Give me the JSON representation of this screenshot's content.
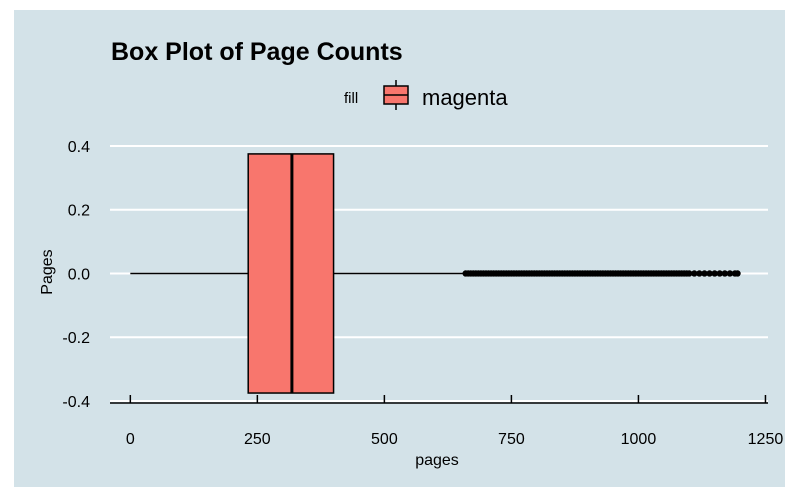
{
  "chart_data": {
    "type": "boxplot",
    "title": "Box Plot of Page Counts",
    "xlabel": "pages",
    "ylabel": "Pages",
    "xlim": [
      -40,
      1255
    ],
    "ylim": [
      -0.4,
      0.45
    ],
    "x_ticks": [
      0,
      250,
      500,
      750,
      1000,
      1250
    ],
    "x_tick_labels": [
      "0",
      "250",
      "500",
      "750",
      "1000",
      "1250"
    ],
    "y_ticks": [
      0.4,
      0.2,
      0.0,
      -0.2,
      -0.4
    ],
    "y_tick_labels": [
      "0.4",
      "0.2",
      "0.0",
      "-0.2",
      "-0.4"
    ],
    "legend": {
      "title": "fill",
      "entries": [
        "magenta"
      ],
      "placement": "top"
    },
    "grid": true,
    "box": {
      "whisker_low": 0,
      "q1": 232,
      "median": 318,
      "q3": 400,
      "whisker_high": 655,
      "y_low": -0.375,
      "y_high": 0.375,
      "fill": "#F8766D"
    },
    "outliers_x": [
      660,
      665,
      670,
      675,
      680,
      685,
      690,
      695,
      700,
      705,
      710,
      715,
      720,
      725,
      730,
      735,
      740,
      745,
      750,
      755,
      760,
      765,
      770,
      775,
      780,
      785,
      790,
      795,
      800,
      805,
      810,
      815,
      820,
      825,
      830,
      835,
      840,
      845,
      850,
      855,
      860,
      865,
      870,
      875,
      880,
      885,
      890,
      895,
      900,
      905,
      910,
      915,
      920,
      925,
      930,
      935,
      940,
      945,
      950,
      955,
      960,
      965,
      970,
      975,
      980,
      985,
      990,
      995,
      1000,
      1005,
      1010,
      1015,
      1020,
      1025,
      1030,
      1035,
      1040,
      1045,
      1050,
      1055,
      1060,
      1065,
      1070,
      1075,
      1080,
      1085,
      1090,
      1095,
      1100,
      1110,
      1120,
      1130,
      1140,
      1150,
      1160,
      1170,
      1180,
      1190,
      1195
    ]
  },
  "colors": {
    "panel_background": "#D3E2E8",
    "grid": "#FFFFFF",
    "box_fill": "#F8766D",
    "outline": "#000000"
  }
}
